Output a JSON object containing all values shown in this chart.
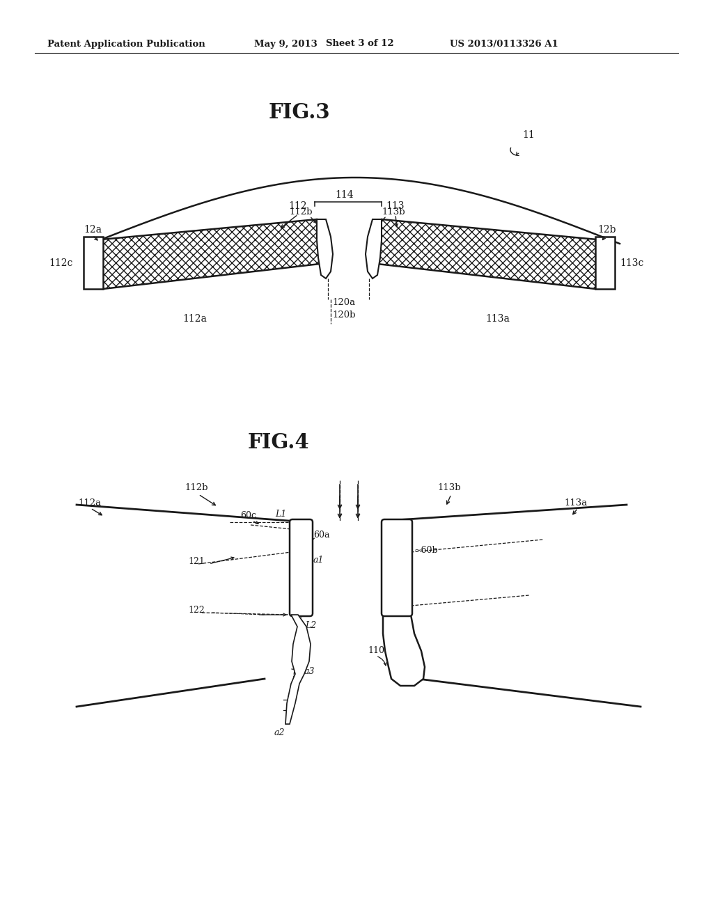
{
  "bg_color": "#ffffff",
  "line_color": "#1a1a1a",
  "text_color": "#1a1a1a",
  "header_left": "Patent Application Publication",
  "header_mid": "May 9, 2013   Sheet 3 of 12",
  "header_right": "US 2013/0113326 A1",
  "fig3_title": "FIG.3",
  "fig4_title": "FIG.4"
}
